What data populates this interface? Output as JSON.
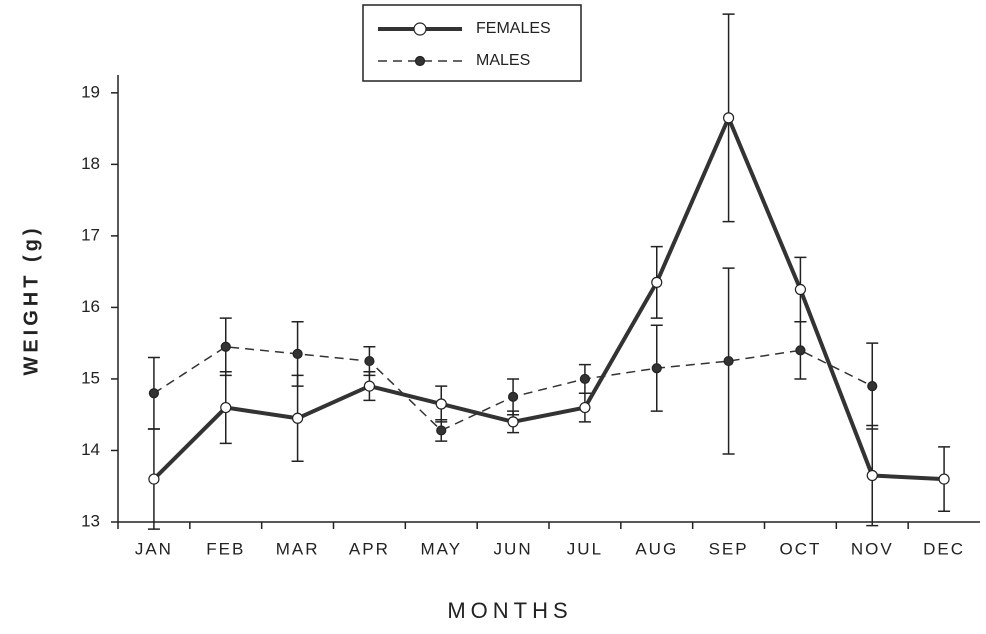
{
  "chart_data": {
    "type": "line",
    "xlabel": "MONTHS",
    "ylabel": "WEIGHT (g)",
    "categories": [
      "JAN",
      "FEB",
      "MAR",
      "APR",
      "MAY",
      "JUN",
      "JUL",
      "AUG",
      "SEP",
      "OCT",
      "NOV",
      "DEC"
    ],
    "series": [
      {
        "name": "FEMALES",
        "color": "#333333",
        "style": "solid",
        "values": [
          13.6,
          14.6,
          14.45,
          14.9,
          14.65,
          14.4,
          14.6,
          16.35,
          18.65,
          16.25,
          13.65,
          13.6
        ],
        "errors": [
          0.7,
          0.5,
          0.6,
          0.2,
          0.25,
          0.15,
          0.2,
          0.5,
          1.45,
          0.45,
          0.7,
          0.45
        ]
      },
      {
        "name": "MALES",
        "color": "#333333",
        "style": "dashed",
        "values": [
          14.8,
          15.45,
          15.35,
          15.25,
          14.28,
          14.75,
          15.0,
          15.15,
          15.25,
          15.4,
          14.9,
          null
        ],
        "errors": [
          0.5,
          0.4,
          0.45,
          0.2,
          0.15,
          0.25,
          0.2,
          0.6,
          1.3,
          0.4,
          0.6,
          null
        ]
      }
    ],
    "ylim": [
      13,
      20.2
    ],
    "yticks": [
      13,
      14,
      15,
      16,
      17,
      18,
      19
    ],
    "legend": "top"
  }
}
